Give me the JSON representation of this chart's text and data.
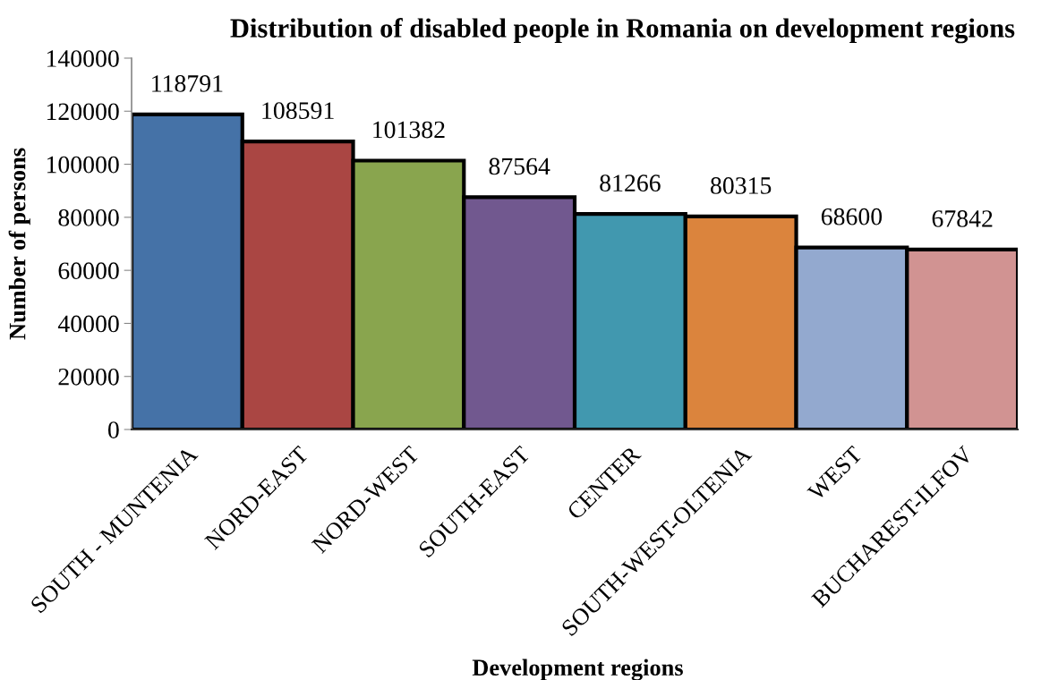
{
  "chart_data": {
    "type": "bar",
    "title": "Distribution of disabled people in Romania on development regions",
    "xlabel": "Development regions",
    "ylabel": "Number of persons",
    "categories": [
      "SOUTH - MUNTENIA",
      "NORD-EAST",
      "NORD-WEST",
      "SOUTH-EAST",
      "CENTER",
      "SOUTH-WEST-OLTENIA",
      "WEST",
      "BUCHAREST-ILFOV"
    ],
    "values": [
      118791,
      108591,
      101382,
      87564,
      81266,
      80315,
      68600,
      67842
    ],
    "colors": [
      "#4572a7",
      "#aa4643",
      "#89a54e",
      "#71588f",
      "#4198af",
      "#db843d",
      "#93a9cf",
      "#d19392"
    ],
    "ylim": [
      0,
      140000
    ],
    "yticks": [
      0,
      20000,
      40000,
      60000,
      80000,
      100000,
      120000,
      140000
    ],
    "grid": false,
    "legend": false,
    "data_labels": true
  }
}
